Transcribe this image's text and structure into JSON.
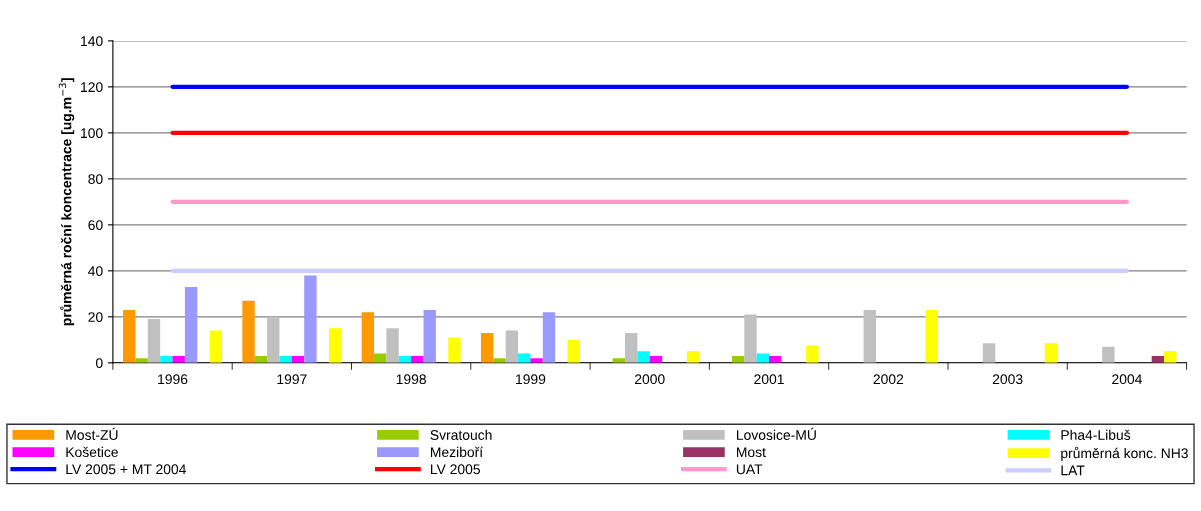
{
  "chart_data": {
    "type": "bar",
    "ylabel": "průměrná roční koncentrace [ug.m$^{−3}$]",
    "categories": [
      "1996",
      "1997",
      "1998",
      "1999",
      "2000",
      "2001",
      "2002",
      "2003",
      "2004"
    ],
    "ylim": [
      0,
      140
    ],
    "yticks": [
      0,
      20,
      40,
      60,
      80,
      100,
      120,
      140
    ],
    "grid": "y",
    "legend": "bottom",
    "series": [
      {
        "name": "Most-ZÚ",
        "color": "#ff9900",
        "values": [
          23,
          27,
          22,
          13,
          null,
          null,
          null,
          null,
          null
        ]
      },
      {
        "name": "Svratouch",
        "color": "#99cc00",
        "values": [
          2,
          3,
          4,
          2,
          2,
          3,
          null,
          null,
          null
        ]
      },
      {
        "name": "Lovosice-MÚ",
        "color": "#c0c0c0",
        "values": [
          19,
          20,
          15,
          14,
          13,
          21,
          23,
          8.5,
          7
        ]
      },
      {
        "name": "Pha4-Libuš",
        "color": "#00ffff",
        "values": [
          3,
          3,
          3,
          4,
          5,
          4,
          null,
          null,
          null
        ]
      },
      {
        "name": "Košetice",
        "color": "#ff00ff",
        "values": [
          3,
          3,
          3,
          2,
          3,
          3,
          null,
          null,
          null
        ]
      },
      {
        "name": "Meziboří",
        "color": "#9999ff",
        "values": [
          33,
          38,
          23,
          22,
          null,
          null,
          null,
          null,
          null
        ]
      },
      {
        "name": "Most",
        "color": "#993366",
        "values": [
          null,
          null,
          null,
          null,
          null,
          null,
          null,
          null,
          3
        ]
      },
      {
        "name": "průměrná konc. NH3",
        "color": "#ffff00",
        "values": [
          14,
          15,
          11,
          10,
          5,
          7.5,
          23,
          8.5,
          5
        ]
      },
      {
        "name": "LV 2005 + MT 2004",
        "type": "line",
        "color": "#0000ff",
        "values": [
          120,
          120,
          120,
          120,
          120,
          120,
          120,
          120,
          120
        ]
      },
      {
        "name": "LV 2005",
        "type": "line",
        "color": "#ff0000",
        "values": [
          100,
          100,
          100,
          100,
          100,
          100,
          100,
          100,
          100
        ]
      },
      {
        "name": "UAT",
        "type": "line",
        "color": "#ff99cc",
        "values": [
          70,
          70,
          70,
          70,
          70,
          70,
          70,
          70,
          70
        ]
      },
      {
        "name": "LAT",
        "type": "line",
        "color": "#ccccff",
        "values": [
          40,
          40,
          40,
          40,
          40,
          40,
          40,
          40,
          40
        ]
      }
    ]
  }
}
